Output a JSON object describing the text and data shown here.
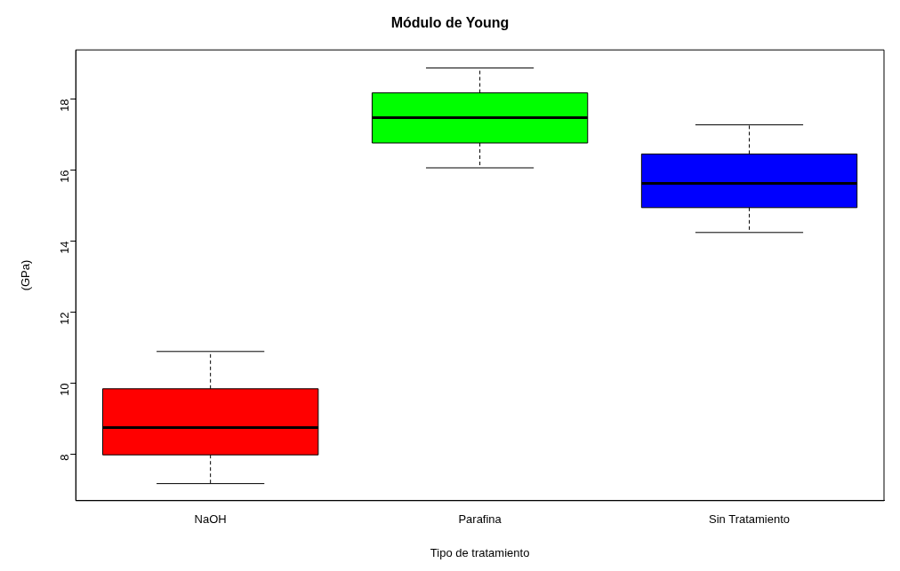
{
  "chart_data": {
    "type": "box",
    "title": "Módulo de Young",
    "xlabel": "Tipo de tratamiento",
    "ylabel": "(GPa)",
    "categories": [
      "NaOH",
      "Parafina",
      "Sin Tratamiento"
    ],
    "colors": [
      "#ff0000",
      "#00ff00",
      "#0000ff"
    ],
    "boxes": [
      {
        "low": 7.17,
        "q1": 7.98,
        "median": 8.75,
        "q3": 9.84,
        "high": 10.89
      },
      {
        "low": 16.06,
        "q1": 16.76,
        "median": 17.47,
        "q3": 18.17,
        "high": 18.87
      },
      {
        "low": 14.24,
        "q1": 14.94,
        "median": 15.62,
        "q3": 16.45,
        "high": 17.27
      }
    ],
    "ylim": [
      6.69,
      19.38
    ],
    "yticks": [
      8,
      10,
      12,
      14,
      16,
      18
    ],
    "grid": false,
    "legend": false
  }
}
